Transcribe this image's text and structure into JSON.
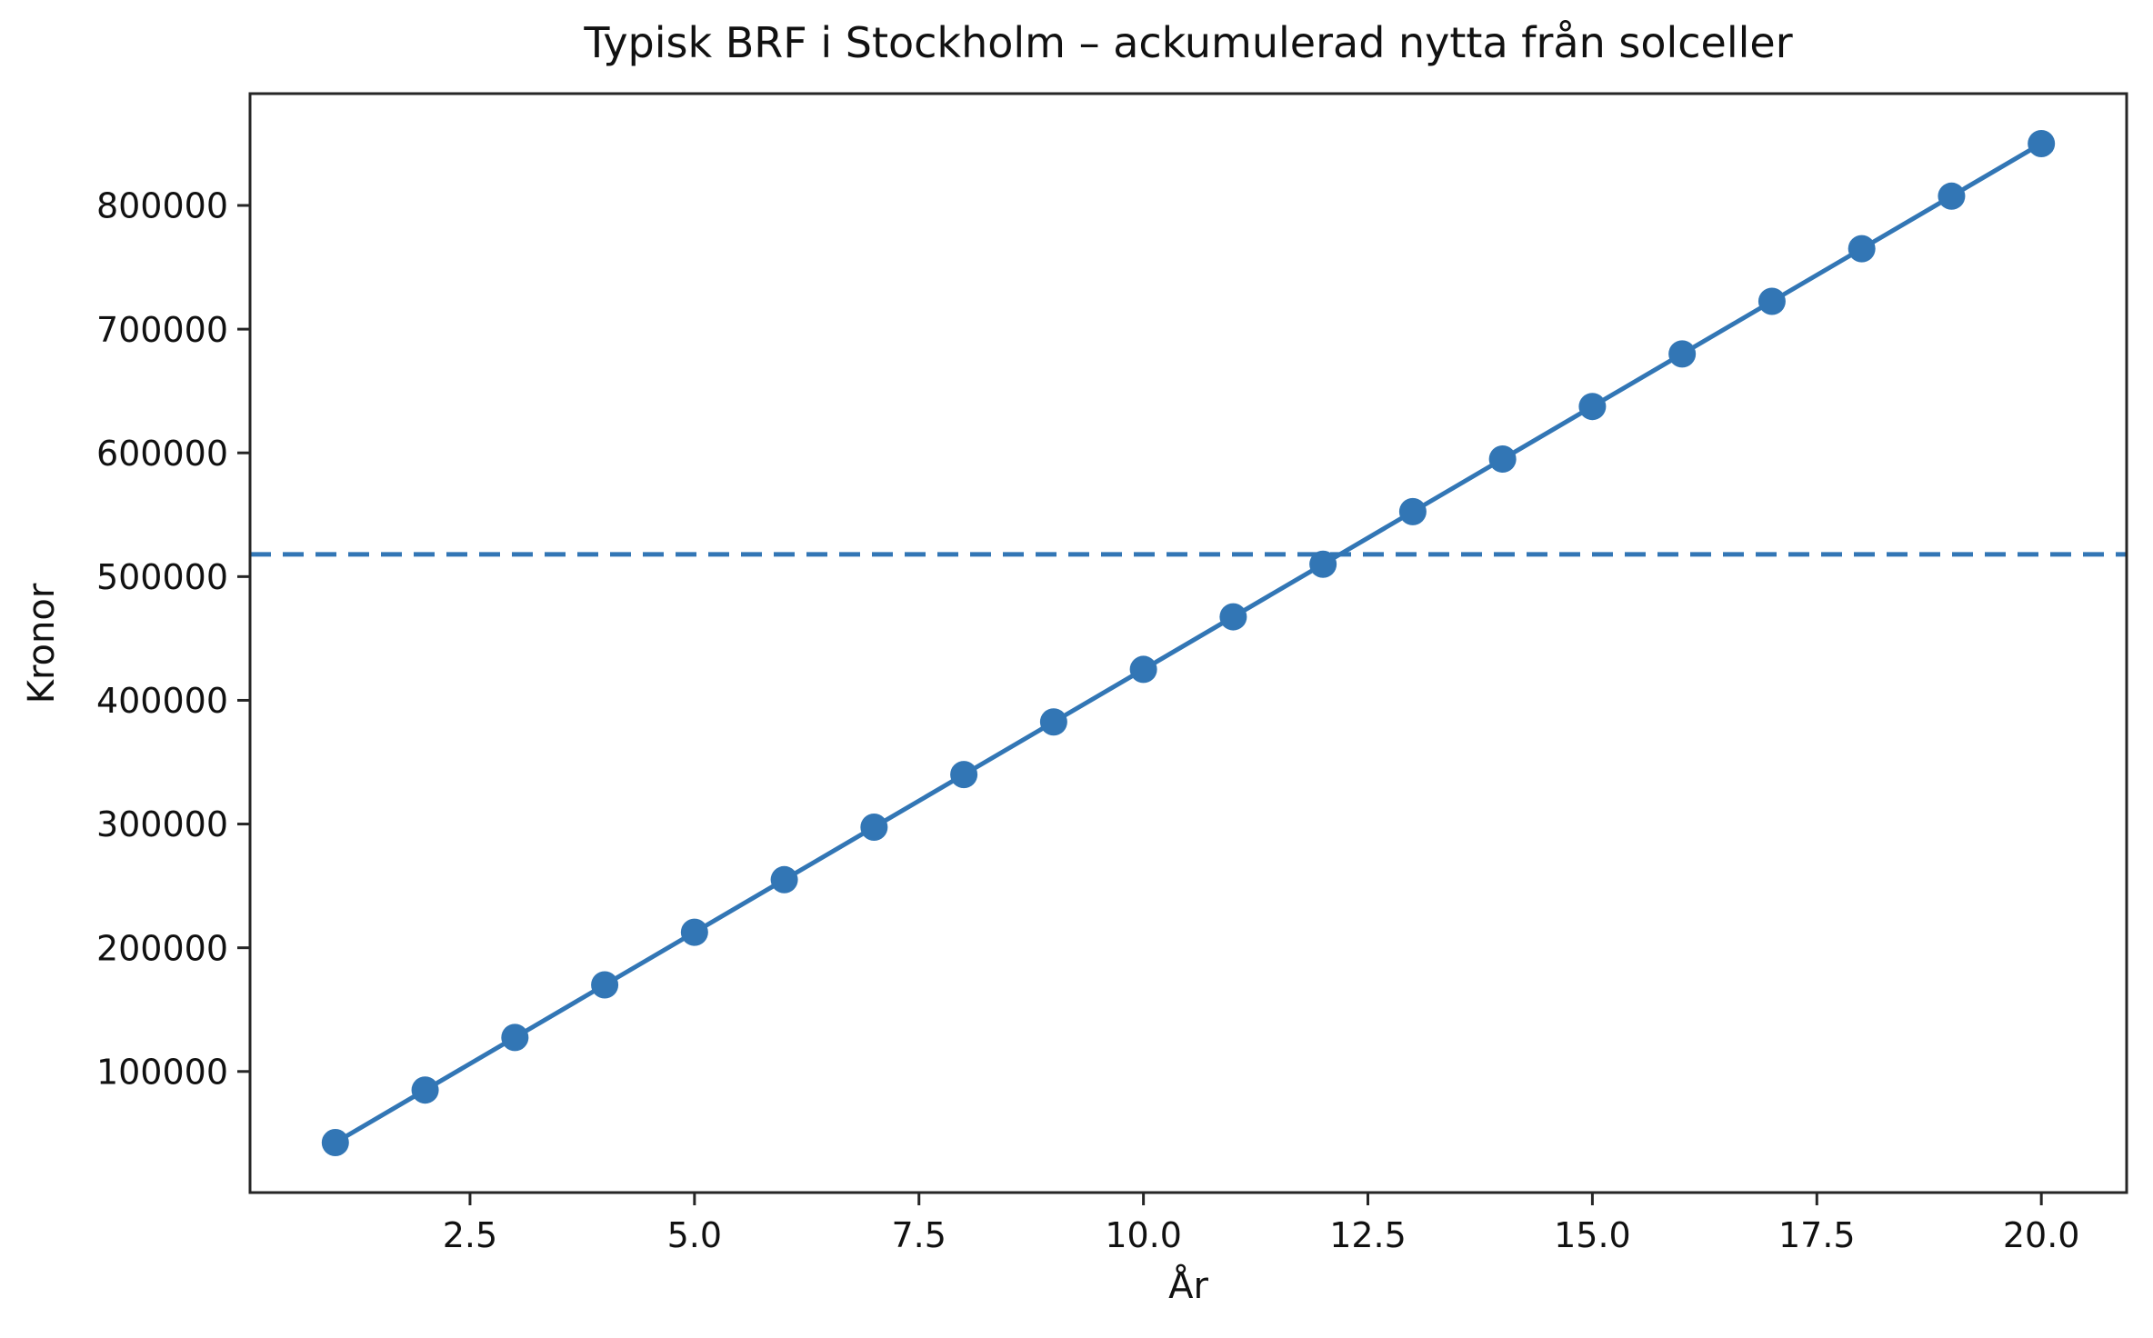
{
  "chart_data": {
    "type": "line",
    "title": "Typisk BRF i Stockholm – ackumulerad nytta från solceller",
    "xlabel": "År",
    "ylabel": "Kronor",
    "series": [
      {
        "name": "ackumulerad-nytta",
        "x": [
          1,
          2,
          3,
          4,
          5,
          6,
          7,
          8,
          9,
          10,
          11,
          12,
          13,
          14,
          15,
          16,
          17,
          18,
          19,
          20
        ],
        "y": [
          42500,
          85000,
          127500,
          170000,
          212500,
          255000,
          297500,
          340000,
          382500,
          425000,
          467500,
          510000,
          552500,
          595000,
          637500,
          680000,
          722500,
          765000,
          807500,
          850000
        ],
        "color": "#3276b5",
        "marker": "circle",
        "line_style": "solid"
      }
    ],
    "reference_line": {
      "orientation": "horizontal",
      "value": 518000,
      "color": "#3276b5",
      "line_style": "dashed"
    },
    "xticks": [
      "2.5",
      "5.0",
      "7.5",
      "10.0",
      "12.5",
      "15.0",
      "17.5",
      "20.0"
    ],
    "xtick_values": [
      2.5,
      5.0,
      7.5,
      10.0,
      12.5,
      15.0,
      17.5,
      20.0
    ],
    "yticks": [
      "100000",
      "200000",
      "300000",
      "400000",
      "500000",
      "600000",
      "700000",
      "800000"
    ],
    "ytick_values": [
      100000,
      200000,
      300000,
      400000,
      500000,
      600000,
      700000,
      800000
    ],
    "xlim": [
      0.05,
      20.95
    ],
    "ylim": [
      2125,
      890375
    ],
    "grid": false,
    "legend_position": "none",
    "axis_color": "#262626",
    "text_color": "#111111"
  }
}
